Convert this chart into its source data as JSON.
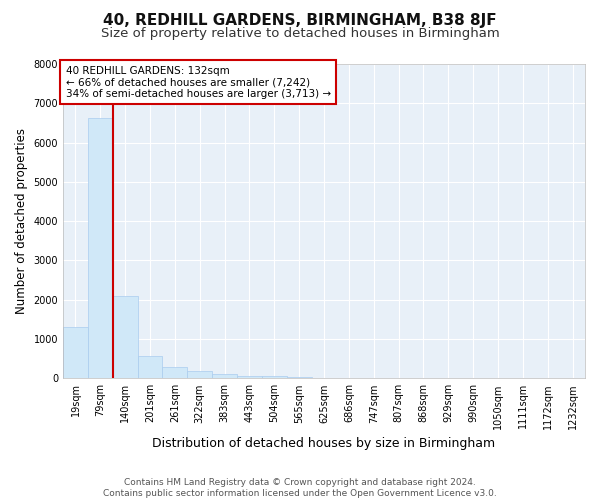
{
  "title1": "40, REDHILL GARDENS, BIRMINGHAM, B38 8JF",
  "title2": "Size of property relative to detached houses in Birmingham",
  "xlabel": "Distribution of detached houses by size in Birmingham",
  "ylabel": "Number of detached properties",
  "bar_labels": [
    "19sqm",
    "79sqm",
    "140sqm",
    "201sqm",
    "261sqm",
    "322sqm",
    "383sqm",
    "443sqm",
    "504sqm",
    "565sqm",
    "625sqm",
    "686sqm",
    "747sqm",
    "807sqm",
    "868sqm",
    "929sqm",
    "990sqm",
    "1050sqm",
    "1111sqm",
    "1172sqm",
    "1232sqm"
  ],
  "bar_values": [
    1310,
    6620,
    2090,
    580,
    300,
    180,
    100,
    60,
    50,
    30,
    20,
    10,
    8,
    5,
    4,
    3,
    2,
    2,
    1,
    1,
    1
  ],
  "bar_color": "#d0e8f8",
  "bar_edge_color": "#aaccee",
  "vline_color": "#cc0000",
  "annotation_text": "40 REDHILL GARDENS: 132sqm\n← 66% of detached houses are smaller (7,242)\n34% of semi-detached houses are larger (3,713) →",
  "annotation_box_color": "#ffffff",
  "annotation_box_edge": "#cc0000",
  "ylim": [
    0,
    8000
  ],
  "yticks": [
    0,
    1000,
    2000,
    3000,
    4000,
    5000,
    6000,
    7000,
    8000
  ],
  "footer": "Contains HM Land Registry data © Crown copyright and database right 2024.\nContains public sector information licensed under the Open Government Licence v3.0.",
  "bg_color": "#ffffff",
  "plot_bg_color": "#e8f0f8",
  "grid_color": "#ffffff",
  "title1_fontsize": 11,
  "title2_fontsize": 9.5,
  "xlabel_fontsize": 9,
  "ylabel_fontsize": 8.5,
  "tick_fontsize": 7,
  "footer_fontsize": 6.5,
  "ann_fontsize": 7.5
}
